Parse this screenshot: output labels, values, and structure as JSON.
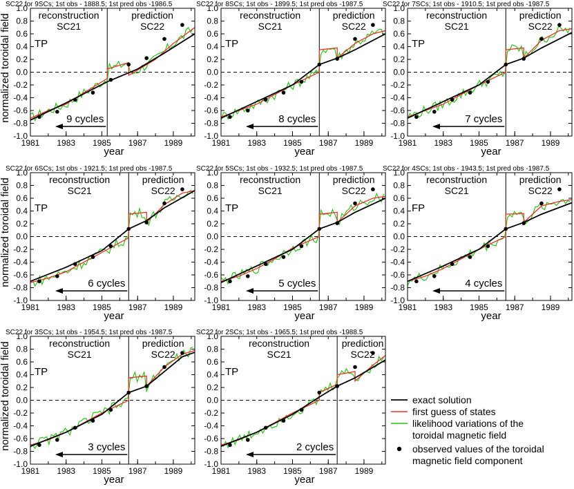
{
  "chart_data": {
    "type": "line",
    "xlabel": "year",
    "ylabel": "normalized toroidal field",
    "xlim": [
      1981,
      1990.2
    ],
    "ylim": [
      -1.0,
      1.0
    ],
    "x_ticks": [
      "1981",
      "1983",
      "1985",
      "1987",
      "1989"
    ],
    "y_ticks": [
      "1.0",
      "0.8",
      "0.6",
      "0.4",
      "0.2",
      "0.0",
      "-0.2",
      "-0.4",
      "-0.6",
      "-0.8",
      "-1.0"
    ],
    "section_labels": {
      "reconstruction": "reconstruction",
      "reconstruction_cycle": "SC21",
      "prediction": "prediction",
      "prediction_cycle": "SC22"
    },
    "legend": {
      "exact": "exact solution",
      "first_guess": "first guess of states",
      "likelihood_1": "likelihood variations of the",
      "likelihood_2": "toroidal magnetic field",
      "observed_1": "observed values of the toroidal",
      "observed_2": "magnetic field component"
    },
    "colors": {
      "exact": "#000000",
      "first_guess": "#e8332a",
      "likelihood": "#2fc21a",
      "observed": "#000000"
    },
    "panels": [
      {
        "title": "SC22 for 9SCs; 1st obs - 1888.5; 1st pred obs -1986.5",
        "tag": "TP",
        "cycles_label": "9 cycles",
        "split_year": 1985.3,
        "exact": [
          [
            1981,
            -0.75
          ],
          [
            1983,
            -0.48
          ],
          [
            1985.3,
            -0.15
          ],
          [
            1987,
            0.05
          ],
          [
            1988.5,
            0.3
          ],
          [
            1990.2,
            0.6
          ]
        ],
        "first_guess": [
          [
            1981,
            -0.72
          ],
          [
            1982,
            -0.6
          ],
          [
            1983,
            -0.5
          ],
          [
            1984,
            -0.32
          ],
          [
            1985.3,
            -0.1
          ],
          [
            1985.3,
            0.05
          ],
          [
            1986.5,
            0.15
          ],
          [
            1986.5,
            -0.05
          ],
          [
            1988,
            0.2
          ],
          [
            1989,
            0.45
          ],
          [
            1990.2,
            0.7
          ]
        ],
        "observed": [
          [
            1981.5,
            -0.7
          ],
          [
            1982.5,
            -0.62
          ],
          [
            1983.5,
            -0.43
          ],
          [
            1984.5,
            -0.32
          ],
          [
            1985.5,
            -0.12
          ],
          [
            1986.5,
            0.12
          ],
          [
            1987.5,
            0.22
          ],
          [
            1988.5,
            0.52
          ],
          [
            1989.5,
            0.74
          ]
        ]
      },
      {
        "title": "SC22 for 8SCs; 1st obs - 1899.5; 1st pred obs -1987.5",
        "tag": "TP",
        "cycles_label": "8 cycles",
        "split_year": 1986.5,
        "exact": [
          [
            1981,
            -0.72
          ],
          [
            1983,
            -0.46
          ],
          [
            1985,
            -0.2
          ],
          [
            1986.5,
            0.12
          ],
          [
            1987.5,
            0.22
          ],
          [
            1988.5,
            0.35
          ],
          [
            1990.2,
            0.6
          ]
        ],
        "first_guess": [
          [
            1981,
            -0.7
          ],
          [
            1982,
            -0.6
          ],
          [
            1983,
            -0.5
          ],
          [
            1984,
            -0.35
          ],
          [
            1985,
            -0.2
          ],
          [
            1986.5,
            0.0
          ],
          [
            1986.5,
            0.35
          ],
          [
            1987.5,
            0.38
          ],
          [
            1987.5,
            0.22
          ],
          [
            1988.5,
            0.45
          ],
          [
            1989.5,
            0.6
          ],
          [
            1990.2,
            0.65
          ]
        ],
        "observed": [
          [
            1981.5,
            -0.7
          ],
          [
            1982.5,
            -0.6
          ],
          [
            1983.5,
            -0.43
          ],
          [
            1984.5,
            -0.32
          ],
          [
            1985.5,
            -0.15
          ],
          [
            1986.5,
            0.12
          ],
          [
            1987.5,
            0.21
          ],
          [
            1988.5,
            0.52
          ],
          [
            1989.5,
            0.74
          ]
        ]
      },
      {
        "title": "SC22 for 7SCs; 1st obs - 1910.5; 1st pred obs -1987.5",
        "tag": "TP",
        "cycles_label": "7 cycles",
        "split_year": 1986.5,
        "exact": [
          [
            1981,
            -0.72
          ],
          [
            1983,
            -0.46
          ],
          [
            1985,
            -0.2
          ],
          [
            1986.5,
            0.12
          ],
          [
            1987.5,
            0.22
          ],
          [
            1988.5,
            0.38
          ],
          [
            1990.2,
            0.62
          ]
        ],
        "first_guess": [
          [
            1981,
            -0.7
          ],
          [
            1982,
            -0.6
          ],
          [
            1983,
            -0.5
          ],
          [
            1984,
            -0.35
          ],
          [
            1985,
            -0.2
          ],
          [
            1986.5,
            0.0
          ],
          [
            1986.5,
            0.35
          ],
          [
            1987.5,
            0.38
          ],
          [
            1987.5,
            0.22
          ],
          [
            1988.5,
            0.5
          ],
          [
            1989.5,
            0.65
          ],
          [
            1990.2,
            0.68
          ]
        ],
        "observed": [
          [
            1981.5,
            -0.7
          ],
          [
            1982.5,
            -0.62
          ],
          [
            1983.5,
            -0.43
          ],
          [
            1984.5,
            -0.32
          ],
          [
            1985.5,
            -0.15
          ],
          [
            1986.5,
            0.12
          ],
          [
            1987.5,
            0.21
          ],
          [
            1988.5,
            0.52
          ],
          [
            1989.5,
            0.74
          ]
        ]
      },
      {
        "title": "SC22 for 6SCs; 1st obs - 1921.5; 1st pred obs -1987.5",
        "tag": "TP",
        "cycles_label": "6 cycles",
        "split_year": 1986.5,
        "exact": [
          [
            1981,
            -0.7
          ],
          [
            1983,
            -0.48
          ],
          [
            1985,
            -0.22
          ],
          [
            1986.5,
            0.12
          ],
          [
            1987.5,
            0.25
          ],
          [
            1988.5,
            0.45
          ],
          [
            1990.2,
            0.72
          ]
        ],
        "first_guess": [
          [
            1981,
            -0.72
          ],
          [
            1982,
            -0.65
          ],
          [
            1983,
            -0.55
          ],
          [
            1984,
            -0.4
          ],
          [
            1985,
            -0.25
          ],
          [
            1986.5,
            -0.02
          ],
          [
            1986.5,
            0.35
          ],
          [
            1987.5,
            0.38
          ],
          [
            1987.5,
            0.22
          ],
          [
            1988.5,
            0.5
          ],
          [
            1989.5,
            0.68
          ],
          [
            1990.2,
            0.72
          ]
        ],
        "observed": [
          [
            1981.5,
            -0.7
          ],
          [
            1982.5,
            -0.62
          ],
          [
            1983.5,
            -0.43
          ],
          [
            1984.5,
            -0.32
          ],
          [
            1985.5,
            -0.15
          ],
          [
            1986.5,
            0.12
          ],
          [
            1987.5,
            0.22
          ],
          [
            1988.5,
            0.52
          ],
          [
            1989.5,
            0.74
          ]
        ]
      },
      {
        "title": "SC22 for 5SCs; 1st obs - 1932.5; 1st pred obs -1987.5",
        "tag": "TP",
        "cycles_label": "5 cycles",
        "split_year": 1986.5,
        "exact": [
          [
            1981,
            -0.72
          ],
          [
            1983,
            -0.46
          ],
          [
            1985,
            -0.2
          ],
          [
            1986.5,
            0.12
          ],
          [
            1987.5,
            0.22
          ],
          [
            1988.5,
            0.38
          ],
          [
            1990.2,
            0.6
          ]
        ],
        "first_guess": [
          [
            1981,
            -0.7
          ],
          [
            1982,
            -0.62
          ],
          [
            1983,
            -0.5
          ],
          [
            1984,
            -0.35
          ],
          [
            1985,
            -0.18
          ],
          [
            1986.5,
            0.0
          ],
          [
            1986.5,
            0.35
          ],
          [
            1987.5,
            0.38
          ],
          [
            1987.5,
            0.22
          ],
          [
            1988.5,
            0.48
          ],
          [
            1989.5,
            0.6
          ],
          [
            1990.2,
            0.63
          ]
        ],
        "observed": [
          [
            1981.5,
            -0.7
          ],
          [
            1982.5,
            -0.62
          ],
          [
            1983.5,
            -0.43
          ],
          [
            1984.5,
            -0.32
          ],
          [
            1985.5,
            -0.15
          ],
          [
            1986.5,
            0.12
          ],
          [
            1987.5,
            0.21
          ],
          [
            1988.5,
            0.52
          ],
          [
            1989.5,
            0.74
          ]
        ]
      },
      {
        "title": "SC22 for 4SCs; 1st obs - 1943.5; 1st pred obs -1987.5",
        "tag": "FP",
        "cycles_label": "4 cycles",
        "split_year": 1986.5,
        "exact": [
          [
            1981,
            -0.7
          ],
          [
            1983,
            -0.46
          ],
          [
            1985,
            -0.2
          ],
          [
            1986.5,
            0.12
          ],
          [
            1987.5,
            0.22
          ],
          [
            1988.5,
            0.35
          ],
          [
            1990.2,
            0.53
          ]
        ],
        "first_guess": [
          [
            1981,
            -0.7
          ],
          [
            1982,
            -0.62
          ],
          [
            1983,
            -0.5
          ],
          [
            1984,
            -0.35
          ],
          [
            1985,
            -0.2
          ],
          [
            1986.5,
            0.0
          ],
          [
            1986.5,
            0.35
          ],
          [
            1987.5,
            0.36
          ],
          [
            1987.5,
            0.22
          ],
          [
            1988.5,
            0.48
          ],
          [
            1989.5,
            0.55
          ],
          [
            1990.2,
            0.58
          ]
        ],
        "observed": [
          [
            1981.5,
            -0.7
          ],
          [
            1982.5,
            -0.62
          ],
          [
            1983.5,
            -0.43
          ],
          [
            1984.5,
            -0.32
          ],
          [
            1985.5,
            -0.15
          ],
          [
            1986.5,
            0.12
          ],
          [
            1987.5,
            0.21
          ],
          [
            1988.5,
            0.52
          ],
          [
            1989.5,
            0.74
          ]
        ]
      },
      {
        "title": "SC22 for 3SCs; 1st obs - 1954.5; 1st pred obs -1987.5",
        "tag": "TP",
        "cycles_label": "3 cycles",
        "split_year": 1986.5,
        "exact": [
          [
            1981,
            -0.72
          ],
          [
            1983,
            -0.5
          ],
          [
            1985,
            -0.22
          ],
          [
            1986.5,
            0.12
          ],
          [
            1987.5,
            0.22
          ],
          [
            1988.5,
            0.45
          ],
          [
            1989.5,
            0.68
          ],
          [
            1990.2,
            0.75
          ]
        ],
        "first_guess": [
          [
            1981,
            -0.7
          ],
          [
            1982,
            -0.62
          ],
          [
            1983,
            -0.5
          ],
          [
            1984,
            -0.35
          ],
          [
            1985,
            -0.2
          ],
          [
            1986.5,
            0.0
          ],
          [
            1986.5,
            0.35
          ],
          [
            1987.5,
            0.38
          ],
          [
            1987.5,
            0.22
          ],
          [
            1988.5,
            0.52
          ],
          [
            1989.5,
            0.72
          ],
          [
            1990.2,
            0.78
          ]
        ],
        "observed": [
          [
            1981.5,
            -0.7
          ],
          [
            1982.5,
            -0.62
          ],
          [
            1983.5,
            -0.43
          ],
          [
            1984.5,
            -0.32
          ],
          [
            1985.5,
            -0.15
          ],
          [
            1986.5,
            0.12
          ],
          [
            1987.5,
            0.22
          ],
          [
            1988.5,
            0.52
          ],
          [
            1989.5,
            0.74
          ]
        ]
      },
      {
        "title": "SC22 for 2SCs; 1st obs - 1965.5; 1st pred obs -1988.5",
        "tag": "TP",
        "cycles_label": "2 cycles",
        "split_year": 1987.5,
        "exact": [
          [
            1981,
            -0.72
          ],
          [
            1983,
            -0.5
          ],
          [
            1985,
            -0.22
          ],
          [
            1986.5,
            0.05
          ],
          [
            1987.5,
            0.22
          ],
          [
            1988.5,
            0.35
          ],
          [
            1990.2,
            0.63
          ]
        ],
        "first_guess": [
          [
            1981,
            -0.7
          ],
          [
            1982,
            -0.62
          ],
          [
            1983,
            -0.5
          ],
          [
            1984,
            -0.35
          ],
          [
            1985,
            -0.2
          ],
          [
            1986.5,
            0.0
          ],
          [
            1986.5,
            0.12
          ],
          [
            1987.5,
            0.25
          ],
          [
            1987.5,
            0.4
          ],
          [
            1988.5,
            0.45
          ],
          [
            1988.5,
            0.3
          ],
          [
            1989.5,
            0.55
          ],
          [
            1990.2,
            0.7
          ]
        ],
        "observed": [
          [
            1981.5,
            -0.7
          ],
          [
            1982.5,
            -0.62
          ],
          [
            1983.5,
            -0.43
          ],
          [
            1984.5,
            -0.32
          ],
          [
            1985.5,
            -0.15
          ],
          [
            1986.5,
            0.12
          ],
          [
            1987.5,
            0.22
          ],
          [
            1988.5,
            0.52
          ],
          [
            1989.5,
            0.74
          ]
        ]
      }
    ]
  }
}
